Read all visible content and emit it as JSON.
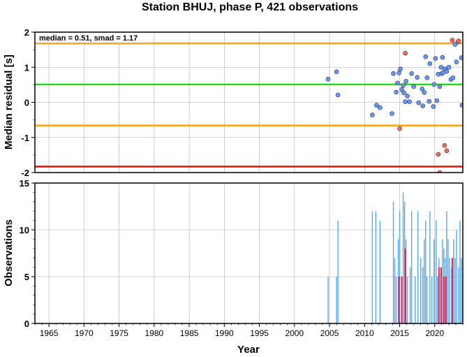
{
  "title": "Station BHUJ, phase P, 421 observations",
  "chart_data": [
    {
      "type": "scatter",
      "panel": "residuals",
      "ylabel": "Median residual [s]",
      "xlim": [
        1963,
        2024
      ],
      "ylim": [
        -2,
        2
      ],
      "yticks": [
        "2",
        "1",
        "0",
        "-1",
        "-2"
      ],
      "ytick_values": [
        2,
        1,
        0,
        -1,
        -2
      ],
      "annotation": "median = 0.51, smad = 1.17",
      "reference_lines": [
        {
          "y": 1.68,
          "color": "#f5a623"
        },
        {
          "y": 0.51,
          "color": "#22dd22"
        },
        {
          "y": -0.66,
          "color": "#f5a623"
        },
        {
          "y": -1.83,
          "color": "#ee1111"
        }
      ],
      "grid": true,
      "colors": {
        "normal": "#6699ff",
        "outlier": "#ff6655"
      },
      "series": [
        {
          "category": "normal",
          "points": [
            [
              2004.8,
              0.66
            ],
            [
              2006.0,
              0.87
            ],
            [
              2006.2,
              0.21
            ],
            [
              2011.1,
              -0.36
            ],
            [
              2011.7,
              -0.08
            ],
            [
              2012.2,
              -0.15
            ],
            [
              2013.9,
              -0.32
            ],
            [
              2014.1,
              0.82
            ],
            [
              2014.5,
              0.29
            ],
            [
              2014.7,
              0.55
            ],
            [
              2014.9,
              0.84
            ],
            [
              2015.1,
              0.95
            ],
            [
              2015.3,
              0.36
            ],
            [
              2015.5,
              0.48
            ],
            [
              2015.6,
              0.27
            ],
            [
              2015.8,
              0.02
            ],
            [
              2015.9,
              0.6
            ],
            [
              2016.1,
              0.18
            ],
            [
              2016.4,
              0.02
            ],
            [
              2016.7,
              0.82
            ],
            [
              2017.0,
              0.45
            ],
            [
              2017.5,
              0.71
            ],
            [
              2017.7,
              -0.01
            ],
            [
              2018.2,
              0.38
            ],
            [
              2018.3,
              -0.1
            ],
            [
              2018.5,
              0.28
            ],
            [
              2018.7,
              1.3
            ],
            [
              2018.9,
              0.7
            ],
            [
              2019.2,
              0.03
            ],
            [
              2019.3,
              1.1
            ],
            [
              2019.8,
              -0.12
            ],
            [
              2019.9,
              0.51
            ],
            [
              2020.1,
              1.25
            ],
            [
              2020.3,
              0.05
            ],
            [
              2020.5,
              0.8
            ],
            [
              2020.7,
              0.45
            ],
            [
              2020.9,
              1.0
            ],
            [
              2021.0,
              0.82
            ],
            [
              2021.1,
              1.28
            ],
            [
              2021.2,
              0.85
            ],
            [
              2021.5,
              0.95
            ],
            [
              2021.7,
              0.88
            ],
            [
              2022.0,
              1.0
            ],
            [
              2022.3,
              0.65
            ],
            [
              2022.6,
              0.7
            ],
            [
              2022.9,
              1.65
            ],
            [
              2023.1,
              1.15
            ],
            [
              2023.3,
              1.72
            ],
            [
              2023.8,
              1.27
            ],
            [
              2023.9,
              -0.08
            ]
          ]
        },
        {
          "category": "outlier",
          "points": [
            [
              2015.0,
              -0.75
            ],
            [
              2015.8,
              1.4
            ],
            [
              2020.5,
              -1.48
            ],
            [
              2020.7,
              -2.0
            ],
            [
              2021.4,
              -1.23
            ],
            [
              2021.7,
              -1.38
            ],
            [
              2022.5,
              1.77
            ],
            [
              2023.4,
              1.75
            ]
          ]
        }
      ]
    },
    {
      "type": "bar",
      "panel": "observations",
      "ylabel": "Observations",
      "xlabel": "Year",
      "xlim": [
        1963,
        2024
      ],
      "ylim": [
        0,
        15
      ],
      "yticks": [
        "15",
        "10",
        "5",
        "0"
      ],
      "ytick_values": [
        15,
        10,
        5,
        0
      ],
      "xticks": [
        "1965",
        "1970",
        "1975",
        "1980",
        "1985",
        "1990",
        "1995",
        "2000",
        "2005",
        "2010",
        "2015",
        "2020"
      ],
      "xtick_values": [
        1965,
        1970,
        1975,
        1980,
        1985,
        1990,
        1995,
        2000,
        2005,
        2010,
        2015,
        2020
      ],
      "grid": true,
      "colors": {
        "normal": "#55aaee",
        "outlier": "#dd2255"
      },
      "series": [
        {
          "category": "normal",
          "bars": [
            [
              2004.8,
              5
            ],
            [
              2006.0,
              5
            ],
            [
              2006.2,
              11
            ],
            [
              2011.1,
              12
            ],
            [
              2011.6,
              12
            ],
            [
              2012.2,
              11
            ],
            [
              2014.1,
              13
            ],
            [
              2014.3,
              7
            ],
            [
              2014.5,
              5
            ],
            [
              2014.8,
              9
            ],
            [
              2015.0,
              12
            ],
            [
              2015.3,
              5
            ],
            [
              2015.5,
              14
            ],
            [
              2015.7,
              13
            ],
            [
              2015.9,
              9
            ],
            [
              2016.1,
              5
            ],
            [
              2016.5,
              6
            ],
            [
              2016.7,
              12
            ],
            [
              2017.2,
              5
            ],
            [
              2017.6,
              12
            ],
            [
              2018.0,
              7
            ],
            [
              2018.3,
              6
            ],
            [
              2018.5,
              9
            ],
            [
              2018.7,
              11
            ],
            [
              2018.9,
              5
            ],
            [
              2019.3,
              12
            ],
            [
              2019.6,
              5
            ],
            [
              2019.9,
              9
            ],
            [
              2020.2,
              11
            ],
            [
              2020.4,
              5
            ],
            [
              2020.6,
              7
            ],
            [
              2020.9,
              6
            ],
            [
              2021.1,
              9
            ],
            [
              2021.3,
              8
            ],
            [
              2021.5,
              7
            ],
            [
              2021.7,
              12
            ],
            [
              2021.9,
              9
            ],
            [
              2022.1,
              7
            ],
            [
              2022.4,
              6
            ],
            [
              2022.7,
              9
            ],
            [
              2022.9,
              7
            ],
            [
              2023.1,
              10
            ],
            [
              2023.4,
              6
            ],
            [
              2023.6,
              11
            ],
            [
              2023.8,
              7
            ]
          ]
        },
        {
          "category": "outlier",
          "bars": [
            [
              2014.9,
              5
            ],
            [
              2015.3,
              5
            ],
            [
              2015.8,
              8
            ],
            [
              2020.6,
              6
            ],
            [
              2020.9,
              6
            ],
            [
              2021.3,
              5
            ],
            [
              2021.6,
              5
            ],
            [
              2022.5,
              7
            ]
          ]
        }
      ]
    }
  ]
}
